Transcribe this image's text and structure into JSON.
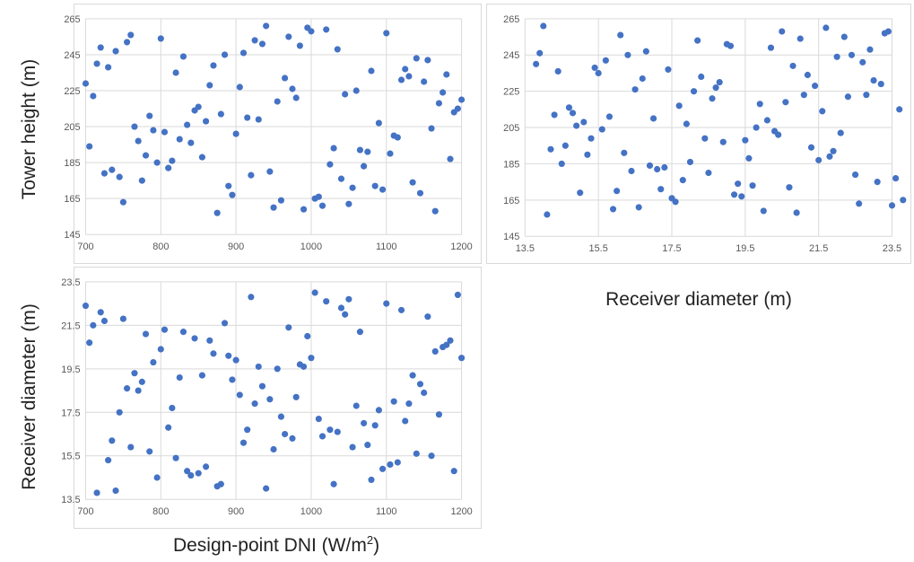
{
  "labels": {
    "tower_height": "Tower height (m)",
    "receiver_diameter": "Receiver diameter (m)",
    "dni_text": "Design-point DNI (W/m",
    "dni_sup": "2",
    "dni_close": ")"
  },
  "colors": {
    "marker": "#4472c4",
    "grid": "#d9d9d9"
  },
  "chart_data": [
    {
      "type": "scatter",
      "panel": "top-left",
      "xlim": [
        700,
        1200
      ],
      "ylim": [
        145,
        265
      ],
      "xticks": [
        "700",
        "800",
        "900",
        "1000",
        "1100",
        "1200"
      ],
      "yticks": [
        "145",
        "165",
        "185",
        "205",
        "225",
        "245",
        "265"
      ],
      "points": [
        [
          700,
          229
        ],
        [
          705,
          194
        ],
        [
          710,
          222
        ],
        [
          715,
          240
        ],
        [
          720,
          249
        ],
        [
          725,
          179
        ],
        [
          730,
          238
        ],
        [
          735,
          181
        ],
        [
          740,
          247
        ],
        [
          745,
          177
        ],
        [
          750,
          163
        ],
        [
          755,
          252
        ],
        [
          760,
          256
        ],
        [
          765,
          205
        ],
        [
          770,
          197
        ],
        [
          775,
          175
        ],
        [
          780,
          189
        ],
        [
          785,
          211
        ],
        [
          790,
          203
        ],
        [
          795,
          185
        ],
        [
          800,
          254
        ],
        [
          805,
          202
        ],
        [
          810,
          182
        ],
        [
          815,
          186
        ],
        [
          820,
          235
        ],
        [
          825,
          198
        ],
        [
          830,
          244
        ],
        [
          835,
          206
        ],
        [
          840,
          196
        ],
        [
          845,
          214
        ],
        [
          850,
          216
        ],
        [
          855,
          188
        ],
        [
          860,
          208
        ],
        [
          865,
          228
        ],
        [
          870,
          239
        ],
        [
          875,
          157
        ],
        [
          880,
          212
        ],
        [
          885,
          245
        ],
        [
          890,
          172
        ],
        [
          895,
          167
        ],
        [
          900,
          201
        ],
        [
          905,
          227
        ],
        [
          910,
          246
        ],
        [
          915,
          210
        ],
        [
          920,
          178
        ],
        [
          925,
          253
        ],
        [
          930,
          209
        ],
        [
          935,
          251
        ],
        [
          940,
          261
        ],
        [
          945,
          180
        ],
        [
          950,
          160
        ],
        [
          955,
          219
        ],
        [
          960,
          164
        ],
        [
          965,
          232
        ],
        [
          970,
          255
        ],
        [
          975,
          226
        ],
        [
          980,
          221
        ],
        [
          985,
          250
        ],
        [
          990,
          159
        ],
        [
          995,
          260
        ],
        [
          1000,
          258
        ],
        [
          1005,
          165
        ],
        [
          1010,
          166
        ],
        [
          1015,
          161
        ],
        [
          1020,
          259
        ],
        [
          1025,
          184
        ],
        [
          1030,
          193
        ],
        [
          1035,
          248
        ],
        [
          1040,
          176
        ],
        [
          1045,
          223
        ],
        [
          1050,
          162
        ],
        [
          1055,
          171
        ],
        [
          1060,
          225
        ],
        [
          1065,
          192
        ],
        [
          1070,
          183
        ],
        [
          1075,
          191
        ],
        [
          1080,
          236
        ],
        [
          1085,
          172
        ],
        [
          1090,
          207
        ],
        [
          1095,
          170
        ],
        [
          1100,
          257
        ],
        [
          1105,
          190
        ],
        [
          1110,
          200
        ],
        [
          1115,
          199
        ],
        [
          1120,
          231
        ],
        [
          1125,
          237
        ],
        [
          1130,
          233
        ],
        [
          1135,
          174
        ],
        [
          1140,
          243
        ],
        [
          1145,
          168
        ],
        [
          1150,
          230
        ],
        [
          1155,
          242
        ],
        [
          1160,
          204
        ],
        [
          1165,
          158
        ],
        [
          1170,
          218
        ],
        [
          1175,
          224
        ],
        [
          1180,
          234
        ],
        [
          1185,
          187
        ],
        [
          1190,
          213
        ],
        [
          1195,
          215
        ],
        [
          1200,
          220
        ]
      ]
    },
    {
      "type": "scatter",
      "panel": "top-right",
      "xlim": [
        13.5,
        23.5
      ],
      "ylim": [
        145,
        265
      ],
      "xticks": [
        "13.5",
        "15.5",
        "17.5",
        "19.5",
        "21.5",
        "23.5"
      ],
      "yticks": [
        "145",
        "165",
        "185",
        "205",
        "225",
        "245",
        "265"
      ],
      "points": [
        [
          13.8,
          240
        ],
        [
          13.9,
          246
        ],
        [
          14.0,
          261
        ],
        [
          14.1,
          157
        ],
        [
          14.2,
          193
        ],
        [
          14.3,
          212
        ],
        [
          14.4,
          236
        ],
        [
          14.5,
          185
        ],
        [
          14.6,
          195
        ],
        [
          14.7,
          216
        ],
        [
          14.8,
          213
        ],
        [
          14.9,
          206
        ],
        [
          15.0,
          169
        ],
        [
          15.1,
          208
        ],
        [
          15.2,
          190
        ],
        [
          15.3,
          199
        ],
        [
          15.4,
          238
        ],
        [
          15.5,
          235
        ],
        [
          15.6,
          204
        ],
        [
          15.7,
          242
        ],
        [
          15.8,
          211
        ],
        [
          15.9,
          160
        ],
        [
          16.0,
          170
        ],
        [
          16.1,
          256
        ],
        [
          16.2,
          191
        ],
        [
          16.3,
          245
        ],
        [
          16.4,
          181
        ],
        [
          16.5,
          226
        ],
        [
          16.6,
          161
        ],
        [
          16.7,
          232
        ],
        [
          16.8,
          247
        ],
        [
          16.9,
          184
        ],
        [
          17.0,
          210
        ],
        [
          17.1,
          182
        ],
        [
          17.2,
          171
        ],
        [
          17.3,
          183
        ],
        [
          17.4,
          237
        ],
        [
          17.5,
          166
        ],
        [
          17.6,
          164
        ],
        [
          17.7,
          217
        ],
        [
          17.8,
          176
        ],
        [
          17.9,
          207
        ],
        [
          18.0,
          186
        ],
        [
          18.1,
          225
        ],
        [
          18.2,
          253
        ],
        [
          18.3,
          233
        ],
        [
          18.4,
          199
        ],
        [
          18.5,
          180
        ],
        [
          18.6,
          221
        ],
        [
          18.7,
          227
        ],
        [
          18.8,
          230
        ],
        [
          18.9,
          197
        ],
        [
          19.0,
          251
        ],
        [
          19.1,
          250
        ],
        [
          19.2,
          168
        ],
        [
          19.3,
          174
        ],
        [
          19.4,
          167
        ],
        [
          19.5,
          198
        ],
        [
          19.6,
          188
        ],
        [
          19.7,
          173
        ],
        [
          19.8,
          205
        ],
        [
          19.9,
          218
        ],
        [
          20.0,
          159
        ],
        [
          20.1,
          209
        ],
        [
          20.2,
          249
        ],
        [
          20.3,
          203
        ],
        [
          20.4,
          201
        ],
        [
          20.5,
          258
        ],
        [
          20.6,
          219
        ],
        [
          20.7,
          172
        ],
        [
          20.8,
          239
        ],
        [
          20.9,
          158
        ],
        [
          21.0,
          254
        ],
        [
          21.1,
          223
        ],
        [
          21.2,
          234
        ],
        [
          21.3,
          194
        ],
        [
          21.4,
          228
        ],
        [
          21.5,
          187
        ],
        [
          21.6,
          214
        ],
        [
          21.7,
          260
        ],
        [
          21.8,
          189
        ],
        [
          21.9,
          192
        ],
        [
          22.0,
          244
        ],
        [
          22.1,
          202
        ],
        [
          22.2,
          255
        ],
        [
          22.3,
          222
        ],
        [
          22.4,
          245
        ],
        [
          22.5,
          179
        ],
        [
          22.6,
          163
        ],
        [
          22.7,
          241
        ],
        [
          22.8,
          223
        ],
        [
          22.9,
          248
        ],
        [
          23.0,
          231
        ],
        [
          23.1,
          175
        ],
        [
          23.2,
          229
        ],
        [
          23.3,
          257
        ],
        [
          23.4,
          258
        ],
        [
          23.5,
          162
        ],
        [
          23.6,
          177
        ],
        [
          23.7,
          215
        ],
        [
          23.8,
          165
        ]
      ]
    },
    {
      "type": "scatter",
      "panel": "bottom-left",
      "xlim": [
        700,
        1200
      ],
      "ylim": [
        13.5,
        23.5
      ],
      "xticks": [
        "700",
        "800",
        "900",
        "1000",
        "1100",
        "1200"
      ],
      "yticks": [
        "13.5",
        "15.5",
        "17.5",
        "19.5",
        "21.5",
        "23.5"
      ],
      "points": [
        [
          700,
          22.4
        ],
        [
          705,
          20.7
        ],
        [
          710,
          21.5
        ],
        [
          715,
          13.8
        ],
        [
          720,
          22.1
        ],
        [
          725,
          21.7
        ],
        [
          730,
          15.3
        ],
        [
          735,
          16.2
        ],
        [
          740,
          13.9
        ],
        [
          745,
          17.5
        ],
        [
          750,
          21.8
        ],
        [
          755,
          18.6
        ],
        [
          760,
          15.9
        ],
        [
          765,
          19.3
        ],
        [
          770,
          18.5
        ],
        [
          775,
          18.9
        ],
        [
          780,
          21.1
        ],
        [
          785,
          15.7
        ],
        [
          790,
          19.8
        ],
        [
          795,
          14.5
        ],
        [
          800,
          20.4
        ],
        [
          805,
          21.3
        ],
        [
          810,
          16.8
        ],
        [
          815,
          17.7
        ],
        [
          820,
          15.4
        ],
        [
          825,
          19.1
        ],
        [
          830,
          21.2
        ],
        [
          835,
          14.8
        ],
        [
          840,
          14.6
        ],
        [
          845,
          20.9
        ],
        [
          850,
          14.7
        ],
        [
          855,
          19.2
        ],
        [
          860,
          15.0
        ],
        [
          865,
          20.8
        ],
        [
          870,
          20.2
        ],
        [
          875,
          14.1
        ],
        [
          880,
          14.2
        ],
        [
          885,
          21.6
        ],
        [
          890,
          20.1
        ],
        [
          895,
          19.0
        ],
        [
          900,
          19.9
        ],
        [
          905,
          18.3
        ],
        [
          910,
          16.1
        ],
        [
          915,
          16.7
        ],
        [
          920,
          22.8
        ],
        [
          925,
          17.9
        ],
        [
          930,
          19.6
        ],
        [
          935,
          18.7
        ],
        [
          940,
          14.0
        ],
        [
          945,
          18.1
        ],
        [
          950,
          15.8
        ],
        [
          955,
          19.5
        ],
        [
          960,
          17.3
        ],
        [
          965,
          16.5
        ],
        [
          970,
          21.4
        ],
        [
          975,
          16.3
        ],
        [
          980,
          18.2
        ],
        [
          985,
          19.7
        ],
        [
          990,
          19.6
        ],
        [
          995,
          21.0
        ],
        [
          1000,
          20.0
        ],
        [
          1005,
          23.0
        ],
        [
          1010,
          17.2
        ],
        [
          1015,
          16.4
        ],
        [
          1020,
          22.6
        ],
        [
          1025,
          16.7
        ],
        [
          1030,
          14.2
        ],
        [
          1035,
          16.6
        ],
        [
          1040,
          22.3
        ],
        [
          1045,
          22.0
        ],
        [
          1050,
          22.7
        ],
        [
          1055,
          15.9
        ],
        [
          1060,
          17.8
        ],
        [
          1065,
          21.2
        ],
        [
          1070,
          17.0
        ],
        [
          1075,
          16.0
        ],
        [
          1080,
          14.4
        ],
        [
          1085,
          16.9
        ],
        [
          1090,
          17.6
        ],
        [
          1095,
          14.9
        ],
        [
          1100,
          22.5
        ],
        [
          1105,
          15.1
        ],
        [
          1110,
          18.0
        ],
        [
          1115,
          15.2
        ],
        [
          1120,
          22.2
        ],
        [
          1125,
          17.1
        ],
        [
          1130,
          17.9
        ],
        [
          1135,
          19.2
        ],
        [
          1140,
          15.6
        ],
        [
          1145,
          18.8
        ],
        [
          1150,
          18.4
        ],
        [
          1155,
          21.9
        ],
        [
          1160,
          15.5
        ],
        [
          1165,
          20.3
        ],
        [
          1170,
          17.4
        ],
        [
          1175,
          20.5
        ],
        [
          1180,
          20.6
        ],
        [
          1185,
          20.8
        ],
        [
          1190,
          14.8
        ],
        [
          1195,
          22.9
        ],
        [
          1200,
          20.0
        ]
      ]
    }
  ]
}
